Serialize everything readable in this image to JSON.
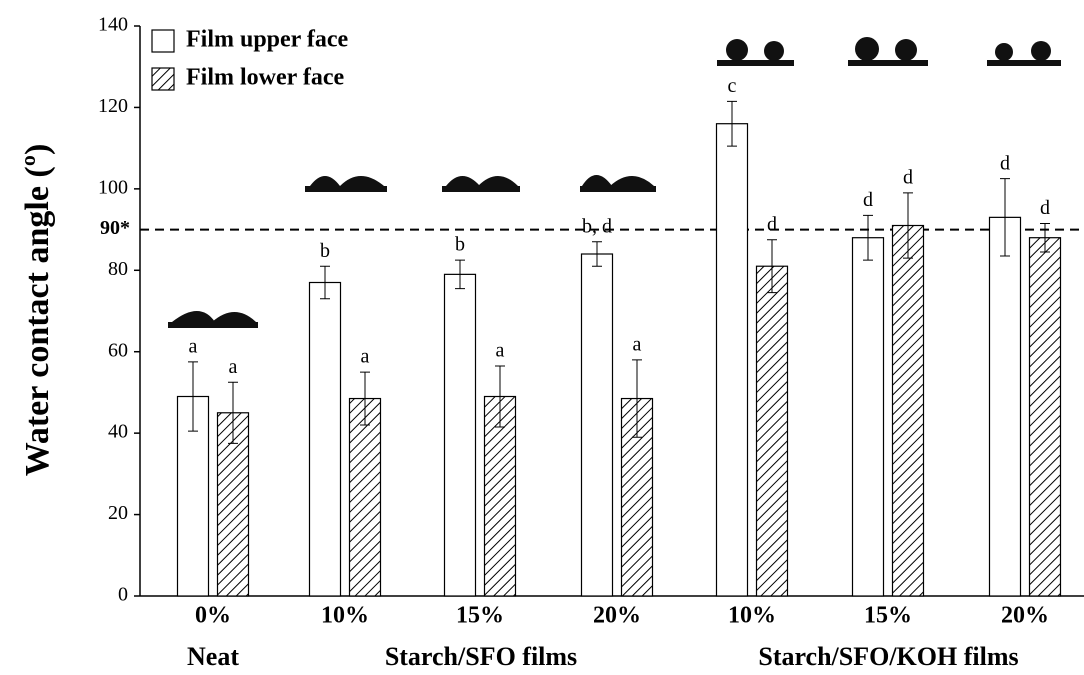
{
  "chart_data": {
    "type": "bar",
    "y_label": "Water contact angle (º)",
    "categories": [
      "0%",
      "10%",
      "15%",
      "20%",
      "10%",
      "15%",
      "20%"
    ],
    "groups": [
      {
        "label": "Neat",
        "categories": [
          0
        ]
      },
      {
        "label": "Starch/SFO films",
        "categories": [
          1,
          2,
          3
        ]
      },
      {
        "label": "Starch/SFO/KOH films",
        "categories": [
          4,
          5,
          6
        ]
      }
    ],
    "series": [
      {
        "name": "Film upper face",
        "color": "#ffffff",
        "pattern": "none",
        "values": [
          49,
          77,
          79,
          84,
          116,
          88,
          93
        ],
        "errors": [
          8.5,
          4,
          3.5,
          3,
          5.5,
          5.5,
          9.5
        ],
        "letters": [
          "a",
          "b",
          "b",
          "b, d",
          "c",
          "d",
          "d"
        ]
      },
      {
        "name": "Film lower face",
        "color": "#ffffff",
        "pattern": "hatch",
        "values": [
          45,
          48.5,
          49,
          48.5,
          81,
          91,
          88
        ],
        "errors": [
          7.5,
          6.5,
          7.5,
          9.5,
          6.5,
          8,
          3.5
        ],
        "letters": [
          "a",
          "a",
          "a",
          "a",
          "d",
          "d",
          "d"
        ]
      }
    ],
    "reference_line": {
      "value": 90,
      "label": "90*"
    },
    "ylim": [
      0,
      140
    ],
    "yticks": [
      0,
      20,
      40,
      60,
      80,
      100,
      120,
      140
    ]
  }
}
